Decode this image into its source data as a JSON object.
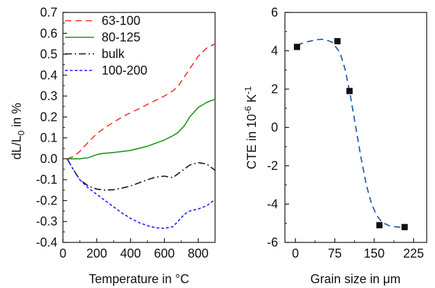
{
  "chart_data": [
    {
      "type": "line",
      "title": "",
      "xlabel": "Temperature in °C",
      "ylabel": {
        "prefix": "dL/L",
        "subscript": "0",
        "suffix": " in %"
      },
      "xlim": [
        0,
        900
      ],
      "ylim": [
        -0.4,
        0.7
      ],
      "xticks": [
        "0",
        "200",
        "400",
        "600",
        "800"
      ],
      "yticks": [
        "-0.4",
        "-0.3",
        "-0.2",
        "-0.1",
        "0.0",
        "0.1",
        "0.2",
        "0.3",
        "0.4",
        "0.5",
        "0.6",
        "0.7"
      ],
      "grid": false,
      "legend_position": "top-left",
      "series": [
        {
          "name": "63-100",
          "color": "#ff2a2a",
          "dash": "dashed",
          "x": [
            25,
            60,
            100,
            150,
            200,
            250,
            300,
            350,
            400,
            450,
            500,
            550,
            600,
            650,
            680,
            700,
            750,
            800,
            850,
            900
          ],
          "y": [
            0.0,
            0.01,
            0.035,
            0.08,
            0.12,
            0.15,
            0.175,
            0.2,
            0.22,
            0.24,
            0.26,
            0.28,
            0.3,
            0.325,
            0.345,
            0.37,
            0.43,
            0.49,
            0.53,
            0.55
          ]
        },
        {
          "name": "80-125",
          "color": "#159615",
          "dash": "solid",
          "x": [
            25,
            60,
            100,
            150,
            200,
            230,
            300,
            350,
            400,
            450,
            500,
            550,
            600,
            650,
            680,
            720,
            750,
            800,
            850,
            900
          ],
          "y": [
            0.0,
            0.0,
            0.0,
            0.005,
            0.02,
            0.025,
            0.03,
            0.035,
            0.04,
            0.05,
            0.06,
            0.075,
            0.09,
            0.11,
            0.125,
            0.16,
            0.2,
            0.245,
            0.27,
            0.285
          ]
        },
        {
          "name": "bulk",
          "color": "#111111",
          "dash": "dashdot",
          "x": [
            25,
            60,
            100,
            150,
            200,
            250,
            300,
            350,
            400,
            450,
            500,
            550,
            600,
            650,
            700,
            750,
            800,
            850,
            900
          ],
          "y": [
            0.0,
            -0.05,
            -0.1,
            -0.13,
            -0.145,
            -0.15,
            -0.148,
            -0.14,
            -0.13,
            -0.115,
            -0.1,
            -0.088,
            -0.083,
            -0.09,
            -0.06,
            -0.03,
            -0.018,
            -0.025,
            -0.055
          ]
        },
        {
          "name": "100-200",
          "color": "#1a1aff",
          "dash": "dotted",
          "x": [
            25,
            60,
            100,
            150,
            200,
            250,
            300,
            350,
            400,
            450,
            500,
            550,
            600,
            650,
            680,
            720,
            750,
            800,
            850,
            900
          ],
          "y": [
            0.0,
            -0.05,
            -0.1,
            -0.14,
            -0.17,
            -0.2,
            -0.23,
            -0.26,
            -0.285,
            -0.305,
            -0.32,
            -0.33,
            -0.333,
            -0.325,
            -0.3,
            -0.265,
            -0.25,
            -0.24,
            -0.225,
            -0.195
          ]
        }
      ]
    },
    {
      "type": "scatter",
      "title": "",
      "xlabel": "Grain size in μm",
      "ylabel": {
        "prefix": "CTE in 10",
        "superscript1": "-6",
        "middle": " K",
        "superscript2": "-1"
      },
      "xlim": [
        -20,
        250
      ],
      "ylim": [
        -6,
        6
      ],
      "xticks": [
        "0",
        "75",
        "150",
        "225"
      ],
      "yticks": [
        "-6",
        "-4",
        "-2",
        "0",
        "2",
        "4",
        "6"
      ],
      "grid": false,
      "points": {
        "x": [
          3,
          80,
          103,
          160,
          208
        ],
        "y": [
          4.2,
          4.5,
          1.9,
          -5.1,
          -5.2
        ]
      },
      "fit_curve": {
        "color": "#2b5aa8",
        "dash": "dashed",
        "x": [
          3,
          20,
          40,
          55,
          70,
          85,
          95,
          105,
          115,
          125,
          135,
          145,
          155,
          165,
          180,
          195,
          210
        ],
        "y": [
          4.3,
          4.45,
          4.58,
          4.6,
          4.45,
          3.9,
          3.0,
          1.6,
          0.0,
          -1.6,
          -3.0,
          -4.0,
          -4.6,
          -4.95,
          -5.15,
          -5.2,
          -5.2
        ]
      }
    }
  ]
}
